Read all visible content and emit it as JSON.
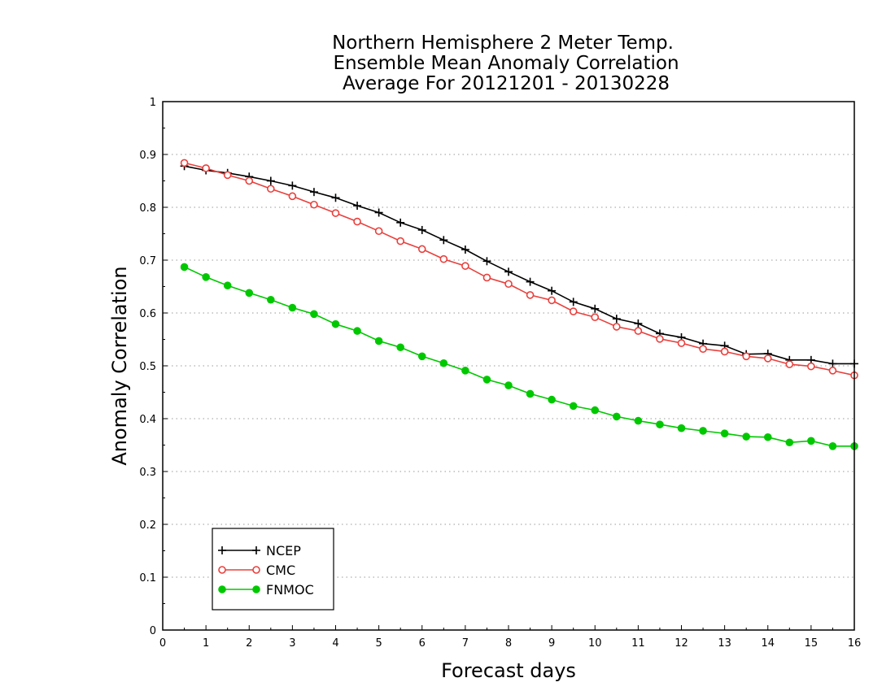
{
  "chart_data": {
    "type": "line",
    "title_lines": [
      "Northern Hemisphere 2 Meter Temp.",
      "Ensemble Mean Anomaly Correlation",
      "Average For 20121201 - 20130228"
    ],
    "xlabel": "Forecast days",
    "ylabel": "Anomaly Correlation",
    "xlim": [
      0,
      16
    ],
    "ylim": [
      0,
      1
    ],
    "x_ticks": [
      "0",
      "1",
      "2",
      "3",
      "4",
      "5",
      "6",
      "7",
      "8",
      "9",
      "10",
      "11",
      "12",
      "13",
      "14",
      "15",
      "16"
    ],
    "y_ticks": [
      "0",
      "0.1",
      "0.2",
      "0.3",
      "0.4",
      "0.5",
      "0.6",
      "0.7",
      "0.8",
      "0.9",
      "1"
    ],
    "grid": "horizontal dotted",
    "legend_position": "bottom-left",
    "x": [
      0.5,
      1,
      1.5,
      2,
      2.5,
      3,
      3.5,
      4,
      4.5,
      5,
      5.5,
      6,
      6.5,
      7,
      7.5,
      8,
      8.5,
      9,
      9.5,
      10,
      10.5,
      11,
      11.5,
      12,
      12.5,
      13,
      13.5,
      14,
      14.5,
      15,
      15.5,
      16
    ],
    "series": [
      {
        "name": "NCEP",
        "color": "#000000",
        "marker": "plus",
        "values": [
          0.878,
          0.87,
          0.865,
          0.858,
          0.85,
          0.841,
          0.829,
          0.818,
          0.803,
          0.79,
          0.771,
          0.757,
          0.738,
          0.72,
          0.698,
          0.678,
          0.659,
          0.642,
          0.621,
          0.608,
          0.589,
          0.58,
          0.561,
          0.554,
          0.542,
          0.538,
          0.522,
          0.523,
          0.511,
          0.511,
          0.504,
          0.504
        ]
      },
      {
        "name": "CMC",
        "color": "#e8403c",
        "marker": "open-circle",
        "values": [
          0.884,
          0.874,
          0.861,
          0.85,
          0.835,
          0.821,
          0.805,
          0.789,
          0.773,
          0.755,
          0.736,
          0.721,
          0.702,
          0.689,
          0.667,
          0.655,
          0.634,
          0.624,
          0.603,
          0.592,
          0.574,
          0.566,
          0.551,
          0.543,
          0.532,
          0.527,
          0.518,
          0.514,
          0.503,
          0.499,
          0.491,
          0.482
        ]
      },
      {
        "name": "FNMOC",
        "color": "#00c800",
        "marker": "filled-circle",
        "values": [
          0.687,
          0.668,
          0.652,
          0.638,
          0.625,
          0.61,
          0.598,
          0.579,
          0.566,
          0.547,
          0.535,
          0.518,
          0.505,
          0.491,
          0.474,
          0.463,
          0.447,
          0.436,
          0.424,
          0.416,
          0.404,
          0.396,
          0.389,
          0.382,
          0.377,
          0.372,
          0.366,
          0.365,
          0.355,
          0.358,
          0.348,
          0.348
        ]
      }
    ]
  }
}
